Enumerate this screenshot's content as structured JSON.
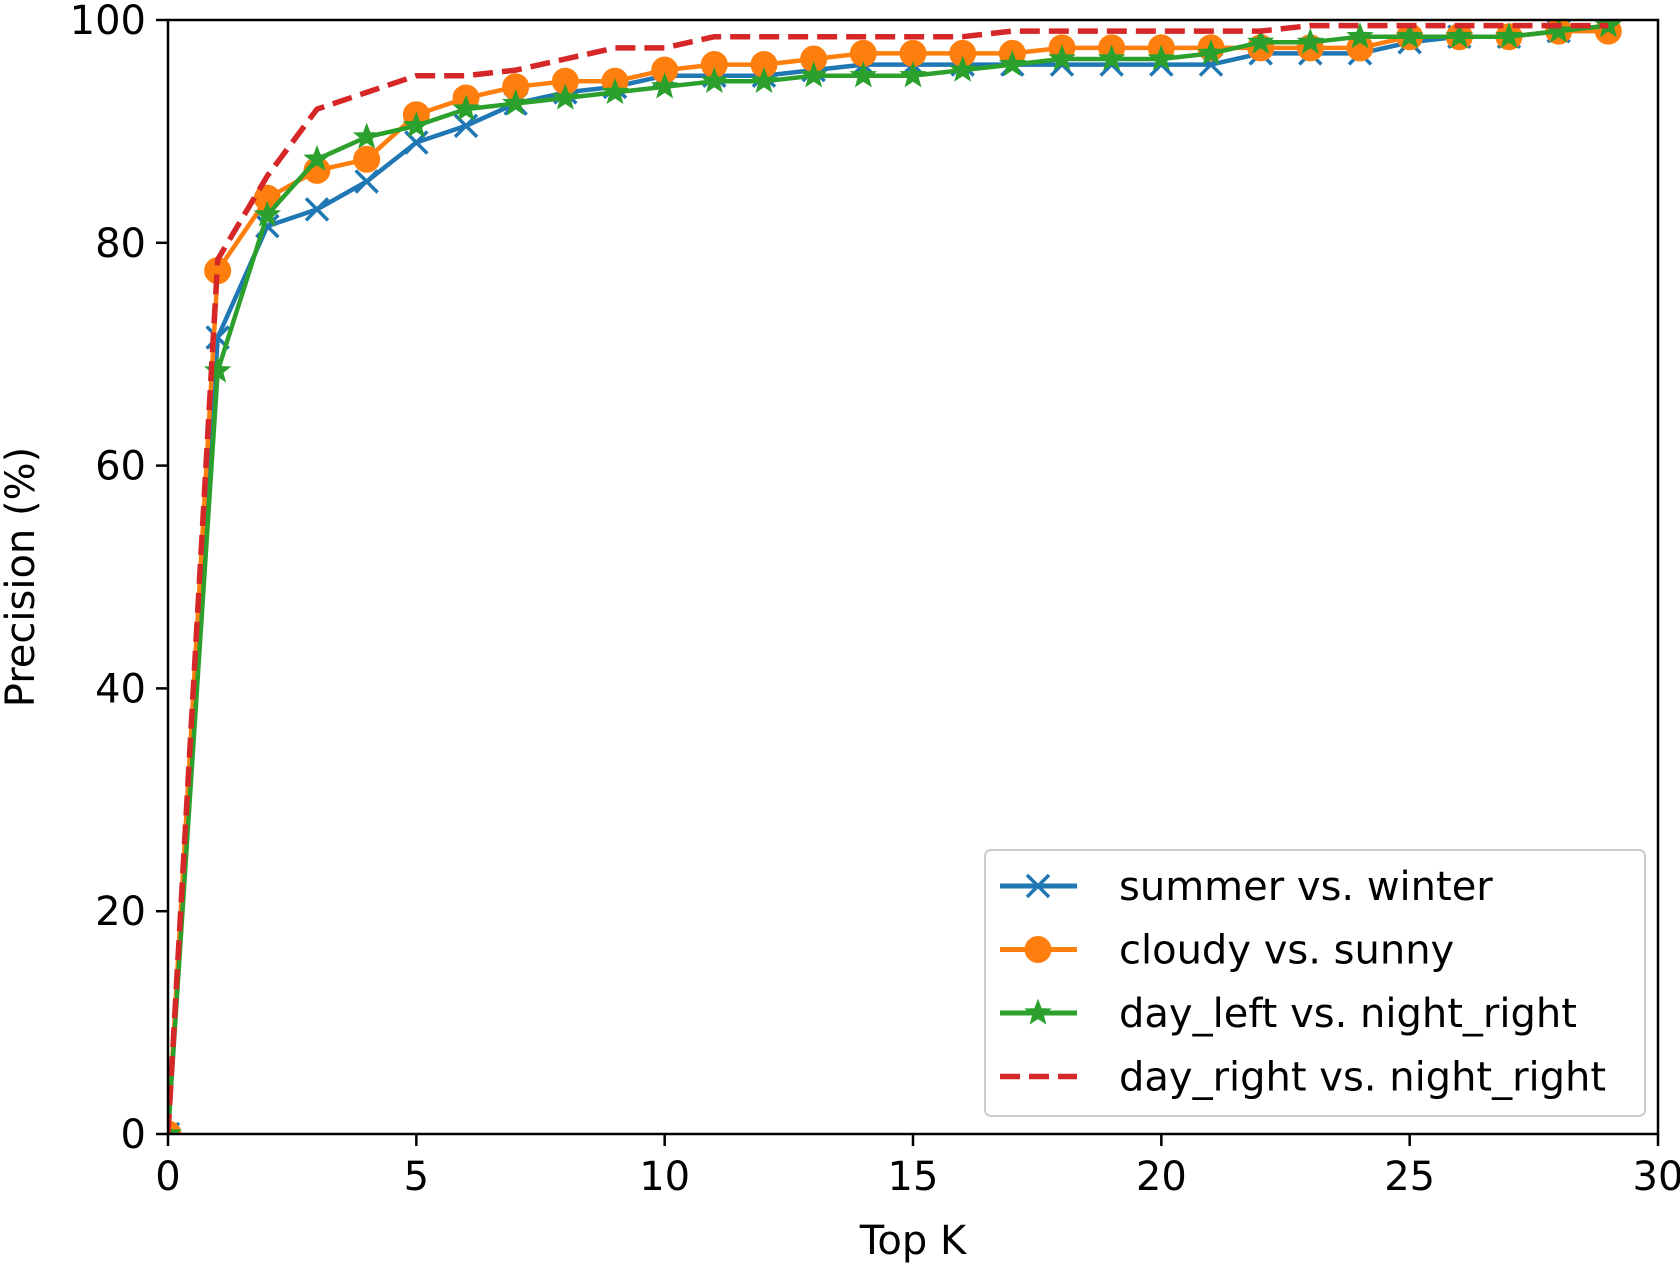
{
  "chart_data": {
    "type": "line",
    "title": "",
    "xlabel": "Top K",
    "ylabel": "Precision (%)",
    "xlim": [
      0,
      30
    ],
    "ylim": [
      0,
      100
    ],
    "xticks": [
      0,
      5,
      10,
      15,
      20,
      25,
      30
    ],
    "yticks": [
      0,
      20,
      40,
      60,
      80,
      100
    ],
    "grid": false,
    "legend_position": "bottom-right",
    "x": [
      0,
      1,
      2,
      3,
      4,
      5,
      6,
      7,
      8,
      9,
      10,
      11,
      12,
      13,
      14,
      15,
      16,
      17,
      18,
      19,
      20,
      21,
      22,
      23,
      24,
      25,
      26,
      27,
      28,
      29
    ],
    "series": [
      {
        "name": "summer vs. winter",
        "color": "#1f77b4",
        "marker": "x",
        "linestyle": "solid",
        "values": [
          0,
          71.5,
          81.5,
          83.0,
          85.5,
          89.0,
          90.5,
          92.5,
          93.5,
          94.0,
          95.0,
          95.0,
          95.0,
          95.5,
          96.0,
          96.0,
          96.0,
          96.0,
          96.0,
          96.0,
          96.0,
          96.0,
          97.0,
          97.0,
          97.0,
          98.0,
          98.5,
          98.5,
          99.0,
          99.5
        ]
      },
      {
        "name": "cloudy vs. sunny",
        "color": "#ff7f0e",
        "marker": "circle",
        "linestyle": "solid",
        "values": [
          0,
          77.5,
          84.0,
          86.5,
          87.5,
          91.5,
          93.0,
          94.0,
          94.5,
          94.5,
          95.5,
          96.0,
          96.0,
          96.5,
          97.0,
          97.0,
          97.0,
          97.0,
          97.5,
          97.5,
          97.5,
          97.5,
          97.5,
          97.5,
          97.5,
          98.5,
          98.5,
          98.5,
          99.0,
          99.0
        ]
      },
      {
        "name": "day_left vs. night_right",
        "color": "#2ca02c",
        "marker": "star",
        "linestyle": "solid",
        "values": [
          0,
          68.5,
          82.5,
          87.5,
          89.5,
          90.5,
          92.0,
          92.5,
          93.0,
          93.5,
          94.0,
          94.5,
          94.5,
          95.0,
          95.0,
          95.0,
          95.5,
          96.0,
          96.5,
          96.5,
          96.5,
          97.0,
          98.0,
          98.0,
          98.5,
          98.5,
          98.5,
          98.5,
          99.0,
          99.5
        ]
      },
      {
        "name": "day_right vs. night_right",
        "color": "#d62728",
        "marker": "none",
        "linestyle": "dashed",
        "values": [
          0,
          78.5,
          86.0,
          92.0,
          93.5,
          95.0,
          95.0,
          95.5,
          96.5,
          97.5,
          97.5,
          98.5,
          98.5,
          98.5,
          98.5,
          98.5,
          98.5,
          99.0,
          99.0,
          99.0,
          99.0,
          99.0,
          99.0,
          99.5,
          99.5,
          99.5,
          99.5,
          99.5,
          99.5,
          99.5
        ]
      }
    ]
  }
}
